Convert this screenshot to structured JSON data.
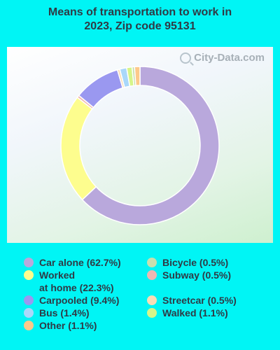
{
  "title": "Means of transportation to work in 2023, Zip code 95131",
  "watermark": "City-Data.com",
  "chart_data": {
    "type": "pie",
    "style": "donut",
    "title": "Means of transportation to work in 2023, Zip code 95131",
    "legend_position": "bottom",
    "slices": [
      {
        "label": "Car alone (62.7%)",
        "value": 62.7,
        "color": "#b9a8dc"
      },
      {
        "label": "Worked\nat home (22.3%)",
        "value": 22.3,
        "color": "#fdfd8e"
      },
      {
        "label": "Subway (0.5%)",
        "value": 0.5,
        "color": "#f0b7b2"
      },
      {
        "label": "Carpooled (9.4%)",
        "value": 9.4,
        "color": "#9a98f0"
      },
      {
        "label": "Streetcar (0.5%)",
        "value": 0.5,
        "color": "#f9ddb6"
      },
      {
        "label": "Bus (1.4%)",
        "value": 1.4,
        "color": "#a9d8fa"
      },
      {
        "label": "Walked (1.1%)",
        "value": 1.1,
        "color": "#d6f58a"
      },
      {
        "label": "Bicycle (0.5%)",
        "value": 0.5,
        "color": "#c8dfae"
      },
      {
        "label": "Other (1.1%)",
        "value": 1.1,
        "color": "#fdc98a"
      }
    ]
  },
  "legend": {
    "left": [
      {
        "label": "Car alone (62.7%)",
        "color": "#b9a8dc"
      },
      {
        "label": "Worked\nat home (22.3%)",
        "color": "#fdfd8e"
      },
      {
        "label": "Carpooled (9.4%)",
        "color": "#9a98f0"
      },
      {
        "label": "Bus (1.4%)",
        "color": "#a9d8fa"
      },
      {
        "label": "Other (1.1%)",
        "color": "#fdc98a"
      }
    ],
    "right": [
      {
        "label": "Bicycle (0.5%)",
        "color": "#c8dfae"
      },
      {
        "label": "Subway (0.5%)",
        "color": "#f0b7b2"
      },
      {
        "label": "Streetcar (0.5%)",
        "color": "#f9ddb6"
      },
      {
        "label": "Walked (1.1%)",
        "color": "#d6f58a"
      }
    ]
  }
}
